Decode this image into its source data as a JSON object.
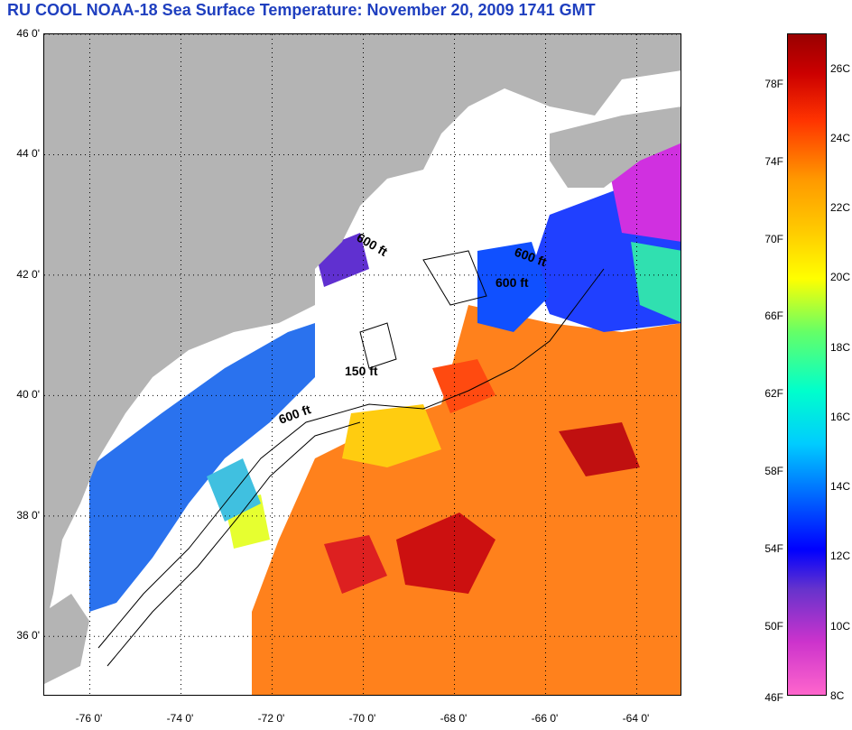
{
  "title": "RU COOL  NOAA-18  Sea Surface Temperature:  November 20, 2009 1741 GMT",
  "map": {
    "lon_range": [
      -77.0,
      -63.0
    ],
    "lat_range": [
      35.0,
      46.0
    ],
    "lat_ticks": [
      {
        "value": 46,
        "label": "46 0'"
      },
      {
        "value": 44,
        "label": "44 0'"
      },
      {
        "value": 42,
        "label": "42 0'"
      },
      {
        "value": 40,
        "label": "40 0'"
      },
      {
        "value": 38,
        "label": "38 0'"
      },
      {
        "value": 36,
        "label": "36 0'"
      }
    ],
    "lon_ticks": [
      {
        "value": -76,
        "label": "-76 0'"
      },
      {
        "value": -74,
        "label": "-74 0'"
      },
      {
        "value": -72,
        "label": "-72 0'"
      },
      {
        "value": -70,
        "label": "-70 0'"
      },
      {
        "value": -68,
        "label": "-68 0'"
      },
      {
        "value": -66,
        "label": "-66 0'"
      },
      {
        "value": -64,
        "label": "-64 0'"
      }
    ],
    "contour_labels": [
      "600 ft",
      "600 ft",
      "600 ft",
      "150 ft",
      "600 ft"
    ],
    "land_color": "#b4b4b4",
    "grid": "dotted"
  },
  "colorbar": {
    "range_c": [
      8,
      27
    ],
    "fahrenheit_labels": [
      {
        "value_c": 25.56,
        "label": "78F"
      },
      {
        "value_c": 23.33,
        "label": "74F"
      },
      {
        "value_c": 21.11,
        "label": "70F"
      },
      {
        "value_c": 18.89,
        "label": "66F"
      },
      {
        "value_c": 16.67,
        "label": "62F"
      },
      {
        "value_c": 14.44,
        "label": "58F"
      },
      {
        "value_c": 12.22,
        "label": "54F"
      },
      {
        "value_c": 10.0,
        "label": "50F"
      },
      {
        "value_c": 7.78,
        "label": "46F"
      }
    ],
    "celsius_labels": [
      {
        "value_c": 26,
        "label": "26C"
      },
      {
        "value_c": 24,
        "label": "24C"
      },
      {
        "value_c": 22,
        "label": "22C"
      },
      {
        "value_c": 20,
        "label": "20C"
      },
      {
        "value_c": 18,
        "label": "18C"
      },
      {
        "value_c": 16,
        "label": "16C"
      },
      {
        "value_c": 14,
        "label": "14C"
      },
      {
        "value_c": 12,
        "label": "12C"
      },
      {
        "value_c": 10,
        "label": "10C"
      },
      {
        "value_c": 8,
        "label": "8C"
      }
    ]
  }
}
